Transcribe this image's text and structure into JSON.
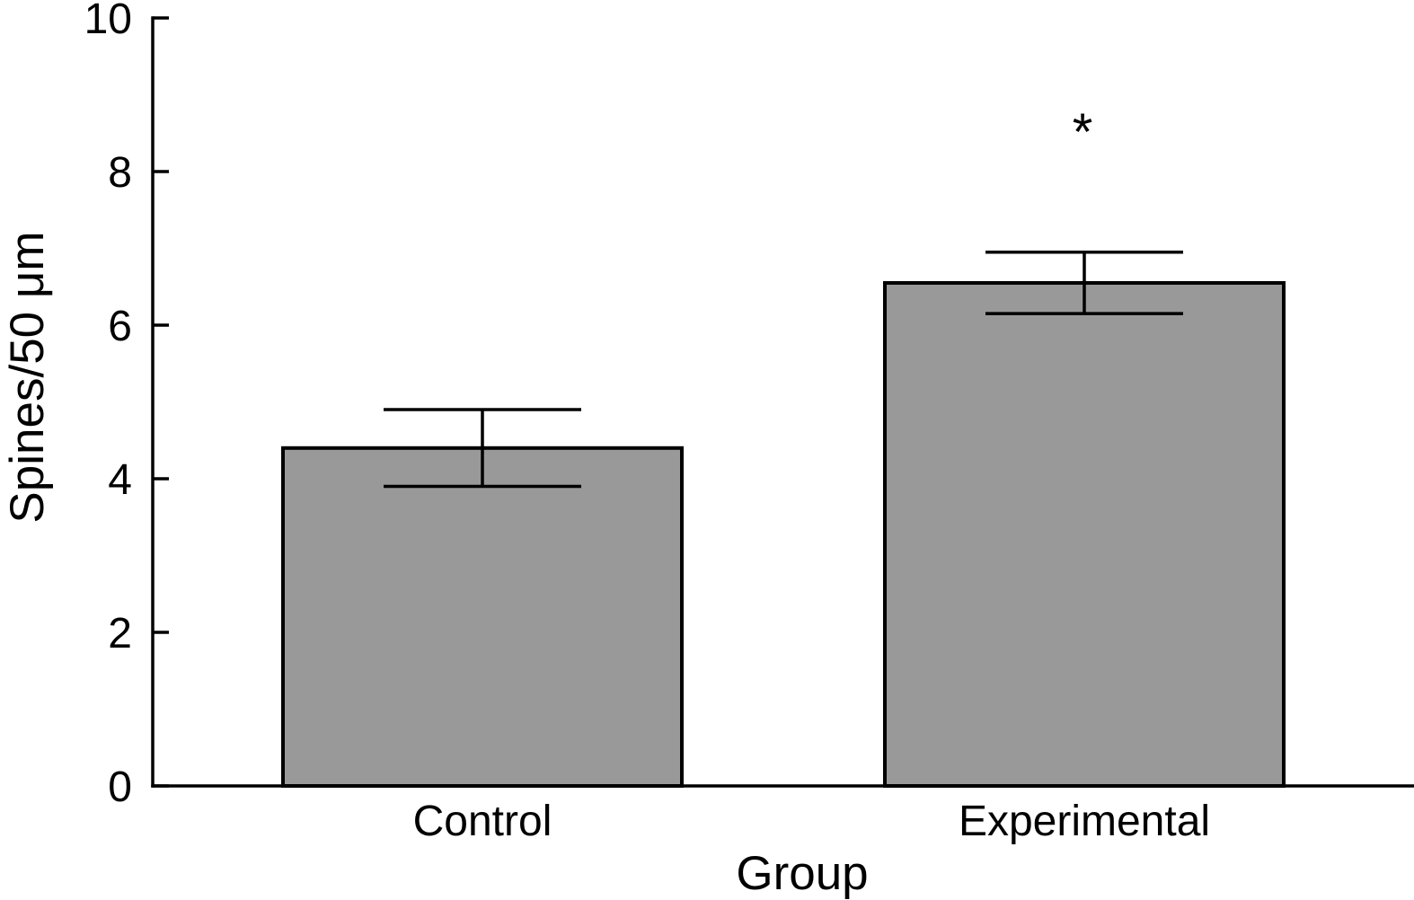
{
  "chart_data": {
    "type": "bar",
    "title": "",
    "xlabel": "Group",
    "ylabel": "Spines/50 μm",
    "categories": [
      "Control",
      "Experimental"
    ],
    "values": [
      4.4,
      6.55
    ],
    "errors": [
      0.5,
      0.4
    ],
    "annotations": [
      {
        "category": "Experimental",
        "text": "*"
      }
    ],
    "ylim": [
      0,
      10
    ],
    "yticks": [
      0,
      2,
      4,
      6,
      8,
      10
    ],
    "grid": false,
    "legend": null,
    "bar_fill": "#999999",
    "bar_stroke": "#000000",
    "axis_color": "#000000",
    "text_color": "#000000",
    "background": "#ffffff"
  }
}
